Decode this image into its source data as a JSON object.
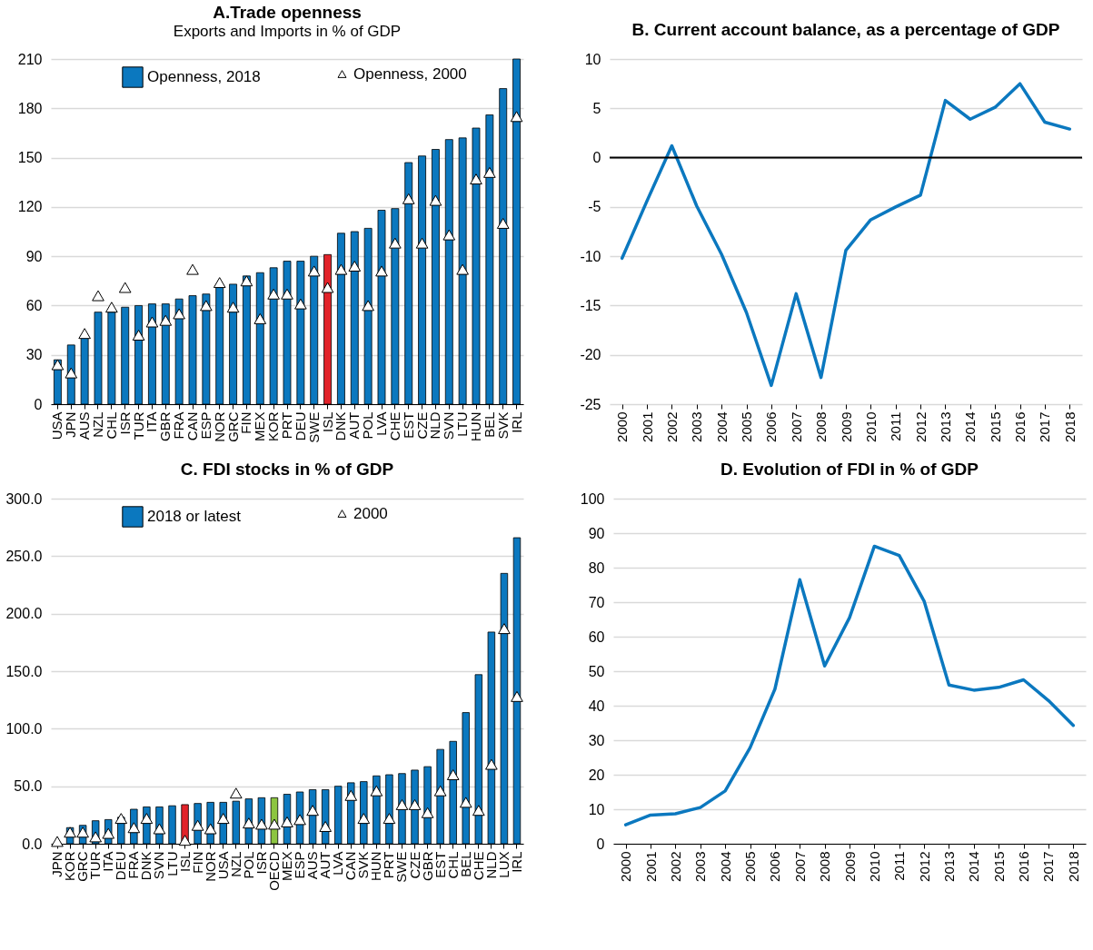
{
  "chart_data": [
    {
      "type": "bar",
      "title": "A.Trade  openness",
      "subtitle": "Exports and Imports in % of GDP",
      "categories": [
        "USA",
        "JPN",
        "AUS",
        "NZL",
        "CHL",
        "ISR",
        "TUR",
        "ITA",
        "GBR",
        "FRA",
        "CAN",
        "ESP",
        "NOR",
        "GRC",
        "FIN",
        "MEX",
        "KOR",
        "PRT",
        "DEU",
        "SWE",
        "ISL",
        "DNK",
        "AUT",
        "POL",
        "LVA",
        "CHE",
        "EST",
        "CZE",
        "NLD",
        "SVN",
        "LTU",
        "HUN",
        "BEL",
        "SVK",
        "IRL"
      ],
      "series": [
        {
          "name": "Openness, 2018",
          "type": "bar",
          "color": "#0b78bf",
          "colors": [
            "#0b78bf",
            "#0b78bf",
            "#0b78bf",
            "#0b78bf",
            "#0b78bf",
            "#0b78bf",
            "#0b78bf",
            "#0b78bf",
            "#0b78bf",
            "#0b78bf",
            "#0b78bf",
            "#0b78bf",
            "#0b78bf",
            "#0b78bf",
            "#0b78bf",
            "#0b78bf",
            "#0b78bf",
            "#0b78bf",
            "#0b78bf",
            "#0b78bf",
            "#e2232a",
            "#0b78bf",
            "#0b78bf",
            "#0b78bf",
            "#0b78bf",
            "#0b78bf",
            "#0b78bf",
            "#0b78bf",
            "#0b78bf",
            "#0b78bf",
            "#0b78bf",
            "#0b78bf",
            "#0b78bf",
            "#0b78bf",
            "#0b78bf"
          ],
          "values": [
            27,
            36,
            42,
            56,
            56,
            59,
            60,
            61,
            61,
            64,
            66,
            67,
            71,
            73,
            78,
            80,
            83,
            87,
            87,
            90,
            91,
            104,
            105,
            107,
            118,
            119,
            147,
            151,
            155,
            161,
            162,
            168,
            176,
            192,
            210
          ]
        },
        {
          "name": "Openness, 2000",
          "type": "scatter",
          "marker": "triangle",
          "color": "#ffffff",
          "values": [
            24,
            19,
            43,
            66,
            59,
            71,
            42,
            50,
            51,
            55,
            82,
            60,
            74,
            59,
            75,
            52,
            67,
            67,
            61,
            81,
            71,
            82,
            84,
            60,
            81,
            98,
            125,
            98,
            124,
            103,
            82,
            137,
            141,
            110,
            175
          ]
        }
      ],
      "ylim": [
        0,
        210
      ],
      "yticks": [
        0,
        30,
        60,
        90,
        120,
        150,
        180,
        210
      ],
      "grid": "y",
      "legend": "top"
    },
    {
      "type": "line",
      "title": "B. Current account balance, as a percentage of GDP",
      "categories": [
        "2000",
        "2001",
        "2002",
        "2003",
        "2004",
        "2005",
        "2006",
        "2007",
        "2008",
        "2009",
        "2010",
        "2011",
        "2012",
        "2013",
        "2014",
        "2015",
        "2016",
        "2017",
        "2018"
      ],
      "series": [
        {
          "type": "line",
          "color": "#0b78bf",
          "values": [
            -10.2,
            -4.4,
            1.2,
            -4.9,
            -9.8,
            -15.7,
            -23.1,
            -13.8,
            -22.3,
            -9.4,
            -6.3,
            -5.0,
            -3.8,
            5.8,
            3.9,
            5.1,
            7.5,
            3.6,
            2.9
          ]
        }
      ],
      "ylim": [
        -25,
        10
      ],
      "yticks": [
        -25,
        -20,
        -15,
        -10,
        -5,
        0,
        5,
        10
      ],
      "grid": "y",
      "ref_lines": [
        {
          "axis": "y",
          "value": 0,
          "color": "#000000"
        }
      ]
    },
    {
      "type": "bar",
      "title": "C. FDI stocks in % of GDP",
      "categories": [
        "JPN",
        "KOR",
        "GRC",
        "TUR",
        "ITA",
        "DEU",
        "FRA",
        "DNK",
        "SVN",
        "LTU",
        "ISL",
        "FIN",
        "NOR",
        "USA",
        "NZL",
        "POL",
        "ISR",
        "OECD",
        "MEX",
        "ESP",
        "AUS",
        "AUT",
        "LVA",
        "CAN",
        "SVK",
        "HUN",
        "PRT",
        "SWE",
        "CZE",
        "GBR",
        "EST",
        "CHL",
        "BEL",
        "CHE",
        "NLD",
        "LUX",
        "IRL"
      ],
      "series": [
        {
          "name": "2018 or latest",
          "type": "bar",
          "color": "#0b78bf",
          "colors": [
            "#0b78bf",
            "#0b78bf",
            "#0b78bf",
            "#0b78bf",
            "#0b78bf",
            "#0b78bf",
            "#0b78bf",
            "#0b78bf",
            "#0b78bf",
            "#0b78bf",
            "#e2232a",
            "#0b78bf",
            "#0b78bf",
            "#0b78bf",
            "#0b78bf",
            "#0b78bf",
            "#0b78bf",
            "#8cc540",
            "#0b78bf",
            "#0b78bf",
            "#0b78bf",
            "#0b78bf",
            "#0b78bf",
            "#0b78bf",
            "#0b78bf",
            "#0b78bf",
            "#0b78bf",
            "#0b78bf",
            "#0b78bf",
            "#0b78bf",
            "#0b78bf",
            "#0b78bf",
            "#0b78bf",
            "#0b78bf",
            "#0b78bf",
            "#0b78bf",
            "#0b78bf"
          ],
          "values": [
            null,
            14,
            16,
            20,
            21,
            23,
            30,
            32,
            32,
            33,
            34,
            35,
            36,
            36,
            37,
            39,
            40,
            40,
            43,
            45,
            47,
            47,
            50,
            53,
            54,
            59,
            60,
            61,
            64,
            67,
            82,
            89,
            114,
            147,
            184,
            235,
            266
          ]
        },
        {
          "name": "2000",
          "type": "scatter",
          "marker": "triangle",
          "color": "#ffffff",
          "values": [
            2,
            10,
            10,
            6,
            9,
            22,
            14,
            22,
            13,
            null,
            3,
            16,
            13,
            22,
            44,
            18,
            17,
            17,
            19,
            21,
            29,
            15,
            null,
            42,
            22,
            46,
            22,
            34,
            34,
            27,
            46,
            60,
            36,
            29,
            69,
            187,
            128
          ]
        }
      ],
      "ylim": [
        0,
        300
      ],
      "yticks": [
        {
          "value": 0,
          "label": "0.0"
        },
        {
          "value": 50,
          "label": "50.0"
        },
        {
          "value": 100,
          "label": "100.0"
        },
        {
          "value": 150,
          "label": "150.0"
        },
        {
          "value": 200,
          "label": "200.0"
        },
        {
          "value": 250,
          "label": "250.0"
        },
        {
          "value": 300,
          "label": "300.0"
        }
      ],
      "grid": "y",
      "legend": "top"
    },
    {
      "type": "line",
      "title": "D. Evolution of FDI in % of GDP",
      "categories": [
        "2000",
        "2001",
        "2002",
        "2003",
        "2004",
        "2005",
        "2006",
        "2007",
        "2008",
        "2009",
        "2010",
        "2011",
        "2012",
        "2013",
        "2014",
        "2015",
        "2016",
        "2017",
        "2018"
      ],
      "series": [
        {
          "type": "line",
          "color": "#0b78bf",
          "values": [
            5.5,
            8.3,
            8.7,
            10.5,
            15.3,
            27.8,
            44.8,
            76.5,
            51.5,
            65.5,
            86.2,
            83.5,
            70.3,
            46.0,
            44.5,
            45.3,
            47.5,
            41.5,
            34.3
          ]
        }
      ],
      "ylim": [
        0,
        100
      ],
      "yticks": [
        0,
        10,
        20,
        30,
        40,
        50,
        60,
        70,
        80,
        90,
        100
      ],
      "grid": "y"
    }
  ]
}
